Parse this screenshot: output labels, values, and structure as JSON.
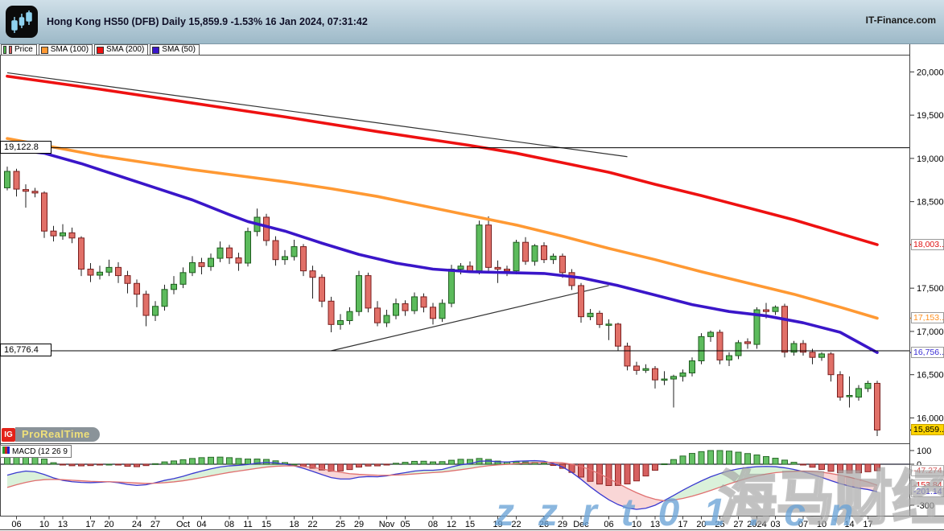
{
  "header": {
    "title": "Hong Kong HS50 (DFB) Daily 15,859.9 -1.53% 16 Jan 2024, 07:31:42",
    "brand": "IT-Finance.com"
  },
  "logo": {
    "ig": "IG",
    "prorealtime": "ProRealTime"
  },
  "watermarks": {
    "cn": "海马财经",
    "site": "zzrt01.cn"
  },
  "legend": [
    {
      "label": "Price",
      "type": "price",
      "up": "#4db84d",
      "down": "#d95f5f"
    },
    {
      "label": "SMA (100)",
      "color": "#ff9933"
    },
    {
      "label": "SMA (200)",
      "color": "#ee1111"
    },
    {
      "label": "SMA (50)",
      "color": "#3a16c9"
    }
  ],
  "chart_data": {
    "type": "candlestick_with_macd",
    "title": "Hong Kong HS50 (DFB) Daily",
    "colors": {
      "up": "#5cbb5c",
      "up_border": "#1e5c1e",
      "down": "#e17068",
      "down_border": "#7a1f1f",
      "sma50": "#3a16c9",
      "sma100": "#ff9933",
      "sma200": "#ee1111",
      "hist_up": "#66c166",
      "hist_up_border": "#2a6b2a",
      "hist_down": "#d66060",
      "hist_down_border": "#8d2626",
      "macd_line": "#3a3ad0",
      "signal_line": "#e07070",
      "fill_up": "rgba(150,215,150,0.35)",
      "fill_down": "rgba(242,165,165,0.45)"
    },
    "y_ticks": [
      {
        "label": "20,000",
        "v": 20000
      },
      {
        "label": "19,500",
        "v": 19500
      },
      {
        "label": "19,000",
        "v": 19000
      },
      {
        "label": "18,500",
        "v": 18500
      },
      {
        "label": "17,500",
        "v": 17500
      },
      {
        "label": "17,000",
        "v": 17000
      },
      {
        "label": "16,500",
        "v": 16500
      },
      {
        "label": "16,000",
        "v": 16000
      }
    ],
    "right_labels": [
      {
        "text": "18,003..",
        "v": 18003,
        "color": "#e01212",
        "bg": "#ffffff",
        "border": "#9a9a9a"
      },
      {
        "text": "17,153..",
        "v": 17153,
        "color": "#ff9020",
        "bg": "#ffffff",
        "border": "#9a9a9a"
      },
      {
        "text": "16,756..",
        "v": 16756,
        "color": "#3b2fd4",
        "bg": "#ffffff",
        "border": "#9a9a9a"
      },
      {
        "text": "15,859..",
        "v": 15859.9,
        "color": "#000000",
        "bg": "#ffd400",
        "border": "#c9a300"
      }
    ],
    "hlines": [
      {
        "label": "19,122.8",
        "v": 19122.8
      },
      {
        "label": "16,776.4",
        "v": 16776.4
      }
    ],
    "trendlines": [
      [
        [
          0,
          19990
        ],
        [
          67,
          19020
        ]
      ],
      [
        [
          35,
          16776
        ],
        [
          65,
          17530
        ]
      ]
    ],
    "x_ticks": [
      {
        "label": "06",
        "i": 1
      },
      {
        "label": "10",
        "i": 4
      },
      {
        "label": "13",
        "i": 6
      },
      {
        "label": "17",
        "i": 9
      },
      {
        "label": "20",
        "i": 11
      },
      {
        "label": "24",
        "i": 14
      },
      {
        "label": "27",
        "i": 16
      },
      {
        "label": "Oct",
        "i": 19
      },
      {
        "label": "04",
        "i": 21
      },
      {
        "label": "08",
        "i": 24
      },
      {
        "label": "11",
        "i": 26
      },
      {
        "label": "15",
        "i": 28
      },
      {
        "label": "18",
        "i": 31
      },
      {
        "label": "22",
        "i": 33
      },
      {
        "label": "25",
        "i": 36
      },
      {
        "label": "29",
        "i": 38
      },
      {
        "label": "Nov",
        "i": 41
      },
      {
        "label": "05",
        "i": 43
      },
      {
        "label": "08",
        "i": 46
      },
      {
        "label": "12",
        "i": 48
      },
      {
        "label": "15",
        "i": 50
      },
      {
        "label": "19",
        "i": 53
      },
      {
        "label": "22",
        "i": 55
      },
      {
        "label": "26",
        "i": 58
      },
      {
        "label": "29",
        "i": 60
      },
      {
        "label": "Dec",
        "i": 62
      },
      {
        "label": "06",
        "i": 65
      },
      {
        "label": "10",
        "i": 68
      },
      {
        "label": "13",
        "i": 70
      },
      {
        "label": "17",
        "i": 73
      },
      {
        "label": "20",
        "i": 75
      },
      {
        "label": "25",
        "i": 77
      },
      {
        "label": "27",
        "i": 79
      },
      {
        "label": "2024",
        "i": 81
      },
      {
        "label": "03",
        "i": 83
      },
      {
        "label": "07",
        "i": 86
      },
      {
        "label": "10",
        "i": 88
      },
      {
        "label": "14",
        "i": 91
      },
      {
        "label": "17",
        "i": 93
      }
    ],
    "candles": [
      [
        18660,
        18905,
        18630,
        18850
      ],
      [
        18850,
        18880,
        18560,
        18645
      ],
      [
        18640,
        18700,
        18430,
        18620
      ],
      [
        18620,
        18660,
        18550,
        18600
      ],
      [
        18600,
        18620,
        18080,
        18160
      ],
      [
        18160,
        18220,
        18040,
        18105
      ],
      [
        18105,
        18240,
        18060,
        18140
      ],
      [
        18140,
        18200,
        18020,
        18080
      ],
      [
        18080,
        18100,
        17640,
        17720
      ],
      [
        17720,
        17790,
        17570,
        17650
      ],
      [
        17650,
        17760,
        17600,
        17685
      ],
      [
        17685,
        17830,
        17640,
        17740
      ],
      [
        17740,
        17800,
        17560,
        17645
      ],
      [
        17645,
        17700,
        17440,
        17555
      ],
      [
        17555,
        17600,
        17280,
        17430
      ],
      [
        17430,
        17470,
        17060,
        17185
      ],
      [
        17185,
        17350,
        17120,
        17290
      ],
      [
        17290,
        17540,
        17240,
        17485
      ],
      [
        17485,
        17640,
        17430,
        17545
      ],
      [
        17545,
        17740,
        17500,
        17680
      ],
      [
        17680,
        17870,
        17640,
        17795
      ],
      [
        17795,
        17850,
        17660,
        17750
      ],
      [
        17750,
        17900,
        17700,
        17845
      ],
      [
        17845,
        18040,
        17800,
        17965
      ],
      [
        17965,
        18000,
        17780,
        17850
      ],
      [
        17850,
        17910,
        17700,
        17790
      ],
      [
        17790,
        18200,
        17750,
        18155
      ],
      [
        18155,
        18420,
        18100,
        18320
      ],
      [
        18320,
        18360,
        17990,
        18050
      ],
      [
        18050,
        18100,
        17760,
        17830
      ],
      [
        17830,
        17940,
        17770,
        17865
      ],
      [
        17865,
        18060,
        17820,
        17980
      ],
      [
        17980,
        18010,
        17640,
        17700
      ],
      [
        17700,
        17760,
        17380,
        17625
      ],
      [
        17625,
        17660,
        17280,
        17350
      ],
      [
        17350,
        17400,
        16990,
        17080
      ],
      [
        17080,
        17200,
        17020,
        17125
      ],
      [
        17125,
        17280,
        17080,
        17230
      ],
      [
        17230,
        17700,
        17180,
        17645
      ],
      [
        17645,
        17680,
        17220,
        17270
      ],
      [
        17270,
        17350,
        17060,
        17100
      ],
      [
        17100,
        17250,
        17050,
        17185
      ],
      [
        17185,
        17380,
        17140,
        17320
      ],
      [
        17320,
        17360,
        17180,
        17240
      ],
      [
        17240,
        17450,
        17200,
        17400
      ],
      [
        17400,
        17440,
        17220,
        17280
      ],
      [
        17280,
        17330,
        17080,
        17150
      ],
      [
        17150,
        17370,
        17110,
        17325
      ],
      [
        17325,
        17770,
        17280,
        17720
      ],
      [
        17720,
        17790,
        17660,
        17755
      ],
      [
        17755,
        17810,
        17680,
        17700
      ],
      [
        17700,
        18280,
        17660,
        18230
      ],
      [
        18230,
        18330,
        17700,
        17740
      ],
      [
        17740,
        17820,
        17560,
        17720
      ],
      [
        17720,
        17760,
        17640,
        17700
      ],
      [
        17700,
        18060,
        17660,
        18030
      ],
      [
        18030,
        18090,
        17770,
        17810
      ],
      [
        17810,
        18010,
        17760,
        17990
      ],
      [
        17990,
        18030,
        17790,
        17830
      ],
      [
        17830,
        17900,
        17780,
        17870
      ],
      [
        17870,
        17900,
        17620,
        17680
      ],
      [
        17680,
        17720,
        17480,
        17530
      ],
      [
        17530,
        17560,
        17100,
        17170
      ],
      [
        17170,
        17260,
        17130,
        17210
      ],
      [
        17210,
        17240,
        17040,
        17080
      ],
      [
        17080,
        17140,
        16900,
        17085
      ],
      [
        17085,
        17100,
        16780,
        16830
      ],
      [
        16830,
        16870,
        16550,
        16600
      ],
      [
        16600,
        16650,
        16500,
        16550
      ],
      [
        16550,
        16620,
        16520,
        16570
      ],
      [
        16570,
        16600,
        16340,
        16440
      ],
      [
        16440,
        16540,
        16380,
        16450
      ],
      [
        16450,
        16500,
        16120,
        16480
      ],
      [
        16480,
        16560,
        16420,
        16520
      ],
      [
        16520,
        16700,
        16480,
        16660
      ],
      [
        16660,
        16980,
        16620,
        16940
      ],
      [
        16940,
        17010,
        16880,
        16990
      ],
      [
        16990,
        17020,
        16620,
        16670
      ],
      [
        16670,
        16760,
        16600,
        16720
      ],
      [
        16720,
        16900,
        16680,
        16870
      ],
      [
        16880,
        16920,
        16800,
        16860
      ],
      [
        16850,
        17280,
        16800,
        17250
      ],
      [
        17250,
        17330,
        17150,
        17230
      ],
      [
        17230,
        17300,
        17190,
        17280
      ],
      [
        17290,
        17320,
        16700,
        16760
      ],
      [
        16760,
        16890,
        16720,
        16860
      ],
      [
        16860,
        16900,
        16720,
        16760
      ],
      [
        16760,
        16800,
        16620,
        16700
      ],
      [
        16700,
        16760,
        16660,
        16740
      ],
      [
        16740,
        16760,
        16420,
        16500
      ],
      [
        16500,
        16540,
        16200,
        16240
      ],
      [
        16250,
        16480,
        16120,
        16260
      ],
      [
        16240,
        16380,
        16200,
        16340
      ],
      [
        16340,
        16430,
        16300,
        16400
      ],
      [
        16400,
        16430,
        15790,
        15859.9
      ]
    ],
    "sma200": [
      [
        0,
        19950
      ],
      [
        10,
        19800
      ],
      [
        20,
        19640
      ],
      [
        30,
        19480
      ],
      [
        40,
        19310
      ],
      [
        50,
        19150
      ],
      [
        55,
        19060
      ],
      [
        60,
        18950
      ],
      [
        65,
        18840
      ],
      [
        70,
        18700
      ],
      [
        75,
        18570
      ],
      [
        80,
        18430
      ],
      [
        85,
        18290
      ],
      [
        90,
        18130
      ],
      [
        94,
        18003
      ]
    ],
    "sma100": [
      [
        0,
        19230
      ],
      [
        5,
        19130
      ],
      [
        10,
        19030
      ],
      [
        15,
        18950
      ],
      [
        20,
        18870
      ],
      [
        25,
        18800
      ],
      [
        30,
        18730
      ],
      [
        35,
        18650
      ],
      [
        40,
        18560
      ],
      [
        45,
        18450
      ],
      [
        50,
        18340
      ],
      [
        55,
        18230
      ],
      [
        60,
        18100
      ],
      [
        65,
        17960
      ],
      [
        70,
        17830
      ],
      [
        75,
        17690
      ],
      [
        80,
        17560
      ],
      [
        85,
        17430
      ],
      [
        90,
        17280
      ],
      [
        94,
        17153
      ]
    ],
    "sma50": [
      [
        0,
        19110
      ],
      [
        4,
        19060
      ],
      [
        8,
        18940
      ],
      [
        12,
        18800
      ],
      [
        16,
        18660
      ],
      [
        20,
        18520
      ],
      [
        24,
        18350
      ],
      [
        26,
        18270
      ],
      [
        30,
        18160
      ],
      [
        34,
        18020
      ],
      [
        38,
        17890
      ],
      [
        42,
        17790
      ],
      [
        46,
        17720
      ],
      [
        50,
        17690
      ],
      [
        54,
        17680
      ],
      [
        58,
        17670
      ],
      [
        62,
        17620
      ],
      [
        66,
        17530
      ],
      [
        70,
        17420
      ],
      [
        74,
        17310
      ],
      [
        78,
        17230
      ],
      [
        82,
        17180
      ],
      [
        86,
        17100
      ],
      [
        90,
        16990
      ],
      [
        94,
        16756
      ]
    ],
    "macd": {
      "label": "MACD (12 26 9",
      "ticks": [
        {
          "label": "100",
          "v": 100
        },
        {
          "label": "0",
          "v": 0
        },
        {
          "label": "-300",
          "v": -300
        }
      ],
      "value_labels": [
        {
          "text": "-47.274",
          "v": -47.274,
          "color": "#d65f5f",
          "bg": "#ffffff",
          "border": "#b0b0b0"
        },
        {
          "text": "-153.84",
          "v": -153.84,
          "color": "#e01212",
          "bg": "#ffffff",
          "border": "#b0b0b0"
        },
        {
          "text": "-201.14",
          "v": -201.14,
          "color": "#3b2fd4",
          "bg": "#ffffff",
          "border": "#b0b0b0"
        }
      ],
      "macd_line": [
        -80,
        -62,
        -50,
        -55,
        -75,
        -100,
        -118,
        -128,
        -133,
        -135,
        -132,
        -128,
        -135,
        -148,
        -155,
        -150,
        -135,
        -118,
        -105,
        -88,
        -68,
        -50,
        -34,
        -20,
        -12,
        -8,
        -2,
        8,
        14,
        10,
        0,
        -12,
        -30,
        -52,
        -76,
        -98,
        -108,
        -108,
        -95,
        -90,
        -92,
        -85,
        -72,
        -62,
        -50,
        -44,
        -44,
        -38,
        -20,
        -4,
        4,
        22,
        24,
        18,
        16,
        22,
        24,
        26,
        22,
        5,
        -20,
        -60,
        -110,
        -165,
        -215,
        -260,
        -295,
        -320,
        -330,
        -322,
        -300,
        -265,
        -228,
        -190,
        -155,
        -122,
        -92,
        -68,
        -48,
        -34,
        -24,
        -18,
        -16,
        -18,
        -26,
        -38,
        -54,
        -74,
        -96,
        -120,
        -142,
        -160,
        -175,
        -185,
        -201.14
      ],
      "signal_line": [
        -170,
        -150,
        -133,
        -120,
        -113,
        -111,
        -113,
        -117,
        -121,
        -125,
        -127,
        -128,
        -130,
        -133,
        -137,
        -140,
        -139,
        -135,
        -129,
        -121,
        -110,
        -98,
        -85,
        -72,
        -60,
        -50,
        -40,
        -30,
        -21,
        -15,
        -12,
        -12,
        -16,
        -23,
        -34,
        -47,
        -59,
        -69,
        -74,
        -77,
        -80,
        -81,
        -79,
        -76,
        -71,
        -66,
        -61,
        -57,
        -49,
        -40,
        -31,
        -20,
        -11,
        -5,
        -1,
        4,
        8,
        12,
        14,
        14,
        10,
        0,
        -16,
        -40,
        -70,
        -104,
        -140,
        -176,
        -208,
        -236,
        -256,
        -268,
        -262,
        -250,
        -234,
        -214,
        -192,
        -168,
        -144,
        -122,
        -102,
        -86,
        -72,
        -62,
        -56,
        -52,
        -50,
        -52,
        -58,
        -68,
        -80,
        -95,
        -112,
        -130,
        -153.84
      ]
    }
  }
}
